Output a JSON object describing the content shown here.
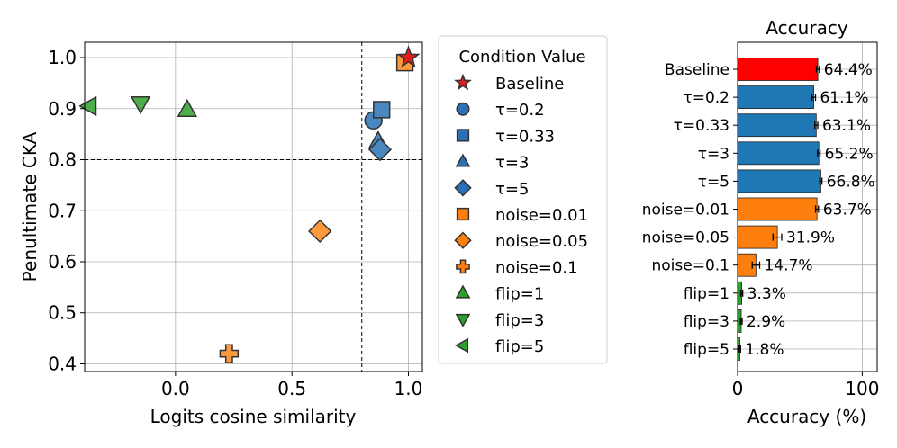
{
  "chart_data": [
    {
      "type": "scatter",
      "title": "",
      "xlabel": "Logits cosine similarity",
      "ylabel": "Penultimate CKA",
      "xlim": [
        -0.39,
        1.06
      ],
      "ylim": [
        0.385,
        1.03
      ],
      "xticks": [
        {
          "value": 0.0,
          "label": "0.0"
        },
        {
          "value": 0.5,
          "label": "0.5"
        },
        {
          "value": 1.0,
          "label": "1.0"
        }
      ],
      "yticks": [
        {
          "value": 0.4,
          "label": "0.4"
        },
        {
          "value": 0.5,
          "label": "0.5"
        },
        {
          "value": 0.6,
          "label": "0.6"
        },
        {
          "value": 0.7,
          "label": "0.7"
        },
        {
          "value": 0.8,
          "label": "0.8"
        },
        {
          "value": 0.9,
          "label": "0.9"
        },
        {
          "value": 1.0,
          "label": "1.0"
        }
      ],
      "grid": true,
      "reference_lines": {
        "x": 0.8,
        "y": 0.8
      },
      "legend_title": "Condition Value",
      "legend_position": "outside-right",
      "points": [
        {
          "name": "Baseline",
          "x": 1.0,
          "y": 1.0,
          "marker": "star",
          "color": "#e41a1c"
        },
        {
          "name": "τ=0.2",
          "x": 0.85,
          "y": 0.877,
          "marker": "circle",
          "color": "#4a86c0"
        },
        {
          "name": "τ=0.33",
          "x": 0.885,
          "y": 0.898,
          "marker": "square",
          "color": "#4a86c0"
        },
        {
          "name": "τ=3",
          "x": 0.87,
          "y": 0.836,
          "marker": "triangle-up",
          "color": "#4a86c0"
        },
        {
          "name": "τ=5",
          "x": 0.878,
          "y": 0.82,
          "marker": "diamond",
          "color": "#4a86c0"
        },
        {
          "name": "noise=0.01",
          "x": 0.985,
          "y": 0.99,
          "marker": "square",
          "color": "#ff9a3c"
        },
        {
          "name": "noise=0.05",
          "x": 0.62,
          "y": 0.66,
          "marker": "diamond",
          "color": "#ff9a3c"
        },
        {
          "name": "noise=0.1",
          "x": 0.23,
          "y": 0.42,
          "marker": "plus",
          "color": "#ff9a3c"
        },
        {
          "name": "flip=1",
          "x": 0.05,
          "y": 0.898,
          "marker": "triangle-up",
          "color": "#4dae4a"
        },
        {
          "name": "flip=3",
          "x": -0.15,
          "y": 0.91,
          "marker": "triangle-down",
          "color": "#4dae4a"
        },
        {
          "name": "flip=5",
          "x": -0.37,
          "y": 0.905,
          "marker": "triangle-left",
          "color": "#4dae4a"
        }
      ],
      "legend_entries": [
        {
          "label": "Baseline",
          "marker": "star",
          "color": "#e41a1c"
        },
        {
          "label": "τ=0.2",
          "marker": "circle",
          "color": "#2b6fb5"
        },
        {
          "label": "τ=0.33",
          "marker": "square",
          "color": "#2b6fb5"
        },
        {
          "label": "τ=3",
          "marker": "triangle-up",
          "color": "#2b6fb5"
        },
        {
          "label": "τ=5",
          "marker": "diamond",
          "color": "#2b6fb5"
        },
        {
          "label": "noise=0.01",
          "marker": "square",
          "color": "#ff7f0e"
        },
        {
          "label": "noise=0.05",
          "marker": "diamond",
          "color": "#ff7f0e"
        },
        {
          "label": "noise=0.1",
          "marker": "plus",
          "color": "#ff7f0e"
        },
        {
          "label": "flip=1",
          "marker": "triangle-up",
          "color": "#2ca02c"
        },
        {
          "label": "flip=3",
          "marker": "triangle-down",
          "color": "#2ca02c"
        },
        {
          "label": "flip=5",
          "marker": "triangle-left",
          "color": "#2ca02c"
        }
      ]
    },
    {
      "type": "bar",
      "orientation": "horizontal",
      "title": "Accuracy",
      "xlabel": "Accuracy (%)",
      "ylabel": "",
      "xlim": [
        0,
        112
      ],
      "xticks": [
        {
          "value": 0,
          "label": "0"
        },
        {
          "value": 100,
          "label": "100"
        }
      ],
      "grid": true,
      "categories": [
        "Baseline",
        "τ=0.2",
        "τ=0.33",
        "τ=3",
        "τ=5",
        "noise=0.01",
        "noise=0.05",
        "noise=0.1",
        "flip=1",
        "flip=3",
        "flip=5"
      ],
      "values": [
        64.4,
        61.1,
        63.1,
        65.2,
        66.8,
        63.7,
        31.9,
        14.7,
        3.3,
        2.9,
        1.8
      ],
      "errors": [
        1.2,
        1.4,
        1.2,
        1.0,
        0.9,
        1.2,
        3.5,
        3.0,
        0.8,
        0.7,
        0.6
      ],
      "value_labels": [
        "64.4%",
        "61.1%",
        "63.1%",
        "65.2%",
        "66.8%",
        "63.7%",
        "31.9%",
        "14.7%",
        "3.3%",
        "2.9%",
        "1.8%"
      ],
      "colors": [
        "#ff0000",
        "#1f77b4",
        "#1f77b4",
        "#1f77b4",
        "#1f77b4",
        "#ff7f0e",
        "#ff7f0e",
        "#ff7f0e",
        "#2ca02c",
        "#2ca02c",
        "#2ca02c"
      ]
    }
  ]
}
